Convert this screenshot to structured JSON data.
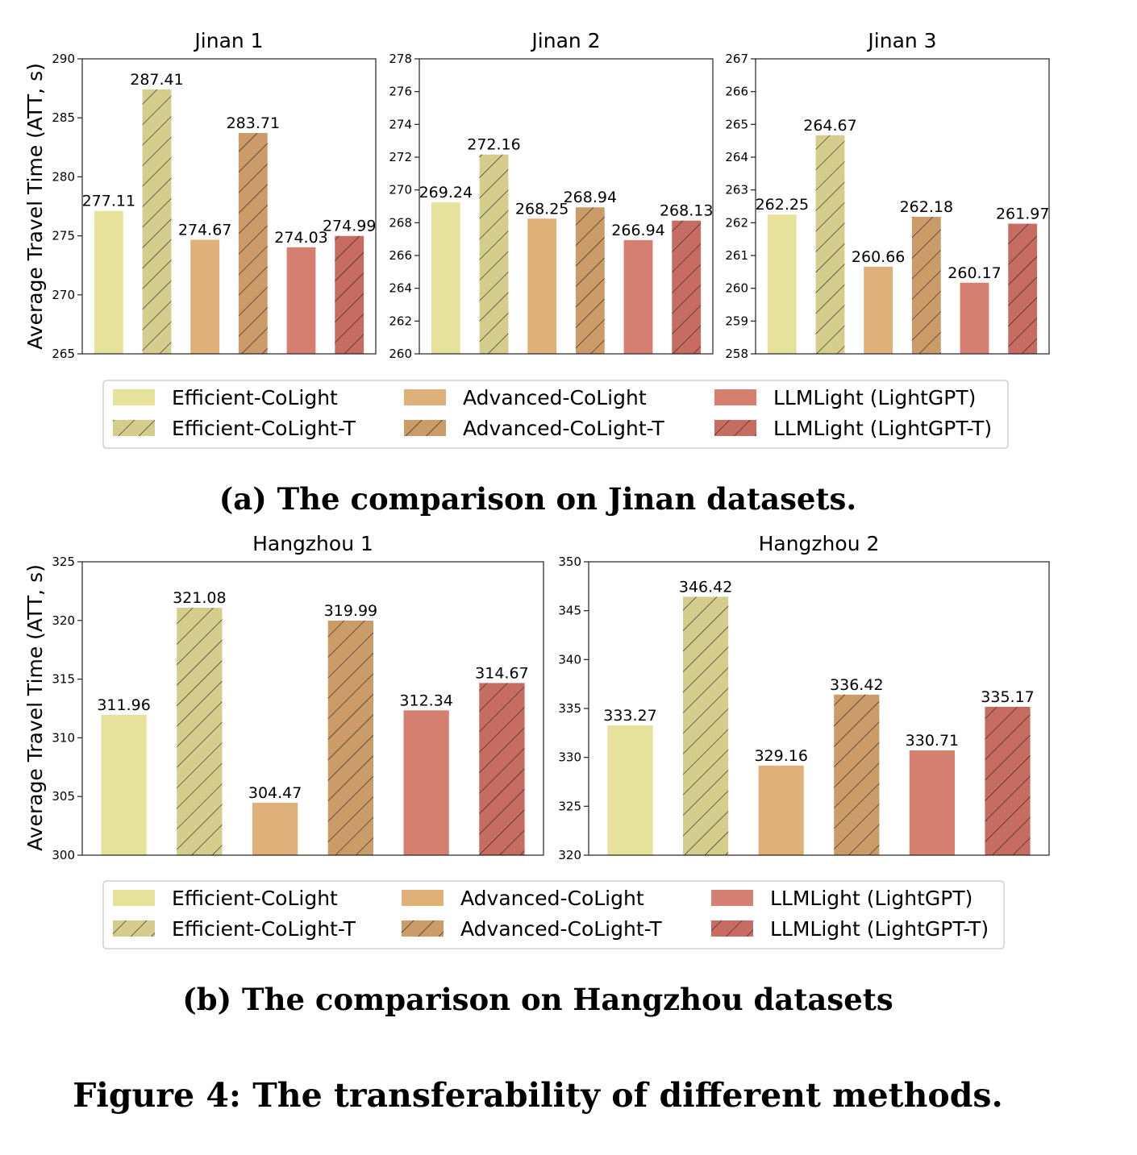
{
  "colors": {
    "Efficient-CoLight": "#e6e19b",
    "Advanced-CoLight": "#e0b07a",
    "LLMLight (LightGPT)": "#d57f70",
    "Efficient-CoLight-T": "#d4cd8c",
    "Advanced-CoLight-T": "#cb9b68",
    "LLMLight (LightGPT-T)": "#c66c60"
  },
  "legend": {
    "items": [
      {
        "label": "Efficient-CoLight",
        "color": "#e6e19b",
        "hatch": false
      },
      {
        "label": "Efficient-CoLight-T",
        "color": "#d4cd8c",
        "hatch": true
      },
      {
        "label": "Advanced-CoLight",
        "color": "#e0b07a",
        "hatch": false
      },
      {
        "label": "Advanced-CoLight-T",
        "color": "#cb9b68",
        "hatch": true
      },
      {
        "label": "LLMLight (LightGPT)",
        "color": "#d57f70",
        "hatch": false
      },
      {
        "label": "LLMLight (LightGPT-T)",
        "color": "#c66c60",
        "hatch": true
      }
    ]
  },
  "captions": {
    "a": "(a) The comparison on Jinan datasets.",
    "b": "(b) The comparison on Hangzhou datasets",
    "figure": "Figure 4: The transferability of different methods."
  },
  "ylabel": "Average Travel Time (ATT, s)",
  "chart_data": [
    {
      "type": "bar",
      "title": "Jinan 1",
      "ylabel": "Average Travel Time (ATT, s)",
      "categories": [
        "Efficient-CoLight",
        "Efficient-CoLight-T",
        "Advanced-CoLight",
        "Advanced-CoLight-T",
        "LLMLight (LightGPT)",
        "LLMLight (LightGPT-T)"
      ],
      "values": [
        277.11,
        287.41,
        274.67,
        283.71,
        274.03,
        274.99
      ],
      "labels": [
        "277.11",
        "287.41",
        "274.67",
        "283.71",
        "274.03",
        "274.99"
      ],
      "ylim": [
        265,
        290
      ],
      "yticks": [
        "265",
        "270",
        "275",
        "280",
        "285",
        "290"
      ]
    },
    {
      "type": "bar",
      "title": "Jinan 2",
      "categories": [
        "Efficient-CoLight",
        "Efficient-CoLight-T",
        "Advanced-CoLight",
        "Advanced-CoLight-T",
        "LLMLight (LightGPT)",
        "LLMLight (LightGPT-T)"
      ],
      "values": [
        269.24,
        272.16,
        268.25,
        268.94,
        266.94,
        268.13
      ],
      "labels": [
        "269.24",
        "272.16",
        "268.25",
        "268.94",
        "266.94",
        "268.13"
      ],
      "ylim": [
        260,
        278
      ],
      "yticks": [
        "260",
        "262",
        "264",
        "266",
        "268",
        "270",
        "272",
        "274",
        "276",
        "278"
      ]
    },
    {
      "type": "bar",
      "title": "Jinan 3",
      "categories": [
        "Efficient-CoLight",
        "Efficient-CoLight-T",
        "Advanced-CoLight",
        "Advanced-CoLight-T",
        "LLMLight (LightGPT)",
        "LLMLight (LightGPT-T)"
      ],
      "values": [
        262.25,
        264.67,
        260.66,
        262.18,
        260.17,
        261.97
      ],
      "labels": [
        "262.25",
        "264.67",
        "260.66",
        "262.18",
        "260.17",
        "261.97"
      ],
      "ylim": [
        258,
        267
      ],
      "yticks": [
        "258",
        "259",
        "260",
        "261",
        "262",
        "263",
        "264",
        "265",
        "266",
        "267"
      ]
    },
    {
      "type": "bar",
      "title": "Hangzhou 1",
      "ylabel": "Average Travel Time (ATT, s)",
      "categories": [
        "Efficient-CoLight",
        "Efficient-CoLight-T",
        "Advanced-CoLight",
        "Advanced-CoLight-T",
        "LLMLight (LightGPT)",
        "LLMLight (LightGPT-T)"
      ],
      "values": [
        311.96,
        321.08,
        304.47,
        319.99,
        312.34,
        314.67
      ],
      "labels": [
        "311.96",
        "321.08",
        "304.47",
        "319.99",
        "312.34",
        "314.67"
      ],
      "ylim": [
        300,
        325
      ],
      "yticks": [
        "300",
        "305",
        "310",
        "315",
        "320",
        "325"
      ]
    },
    {
      "type": "bar",
      "title": "Hangzhou 2",
      "categories": [
        "Efficient-CoLight",
        "Efficient-CoLight-T",
        "Advanced-CoLight",
        "Advanced-CoLight-T",
        "LLMLight (LightGPT)",
        "LLMLight (LightGPT-T)"
      ],
      "values": [
        333.27,
        346.42,
        329.16,
        336.42,
        330.71,
        335.17
      ],
      "labels": [
        "333.27",
        "346.42",
        "329.16",
        "336.42",
        "330.71",
        "335.17"
      ],
      "ylim": [
        320,
        350
      ],
      "yticks": [
        "320",
        "325",
        "330",
        "335",
        "340",
        "345",
        "350"
      ]
    }
  ]
}
